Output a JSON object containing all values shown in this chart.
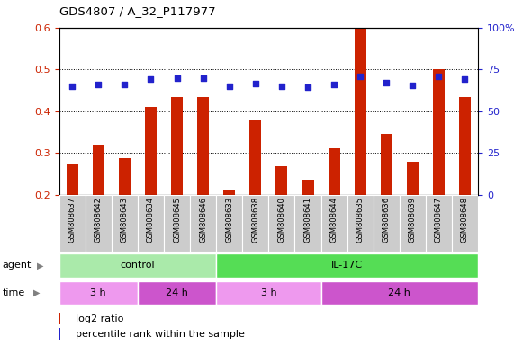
{
  "title": "GDS4807 / A_32_P117977",
  "samples": [
    "GSM808637",
    "GSM808642",
    "GSM808643",
    "GSM808634",
    "GSM808645",
    "GSM808646",
    "GSM808633",
    "GSM808638",
    "GSM808640",
    "GSM808641",
    "GSM808644",
    "GSM808635",
    "GSM808636",
    "GSM808639",
    "GSM808647",
    "GSM808648"
  ],
  "log2_ratio": [
    0.275,
    0.32,
    0.288,
    0.41,
    0.435,
    0.435,
    0.21,
    0.378,
    0.268,
    0.237,
    0.312,
    0.6,
    0.347,
    0.279,
    0.5,
    0.435
  ],
  "percentile_pct": [
    65,
    66,
    66,
    69,
    70,
    70,
    65,
    66.5,
    65,
    64.5,
    66,
    71,
    67,
    65.5,
    71,
    69
  ],
  "ylim_left": [
    0.2,
    0.6
  ],
  "ylim_right": [
    0,
    100
  ],
  "yticks_left": [
    0.2,
    0.3,
    0.4,
    0.5,
    0.6
  ],
  "yticks_right": [
    0,
    25,
    50,
    75,
    100
  ],
  "bar_color": "#cc2200",
  "dot_color": "#2222cc",
  "bar_width": 0.45,
  "agent_groups": [
    {
      "label": "control",
      "start": 0,
      "end": 6,
      "color": "#aaeaaa"
    },
    {
      "label": "IL-17C",
      "start": 6,
      "end": 16,
      "color": "#55dd55"
    }
  ],
  "time_groups": [
    {
      "label": "3 h",
      "start": 0,
      "end": 3,
      "color": "#ee99ee"
    },
    {
      "label": "24 h",
      "start": 3,
      "end": 6,
      "color": "#cc55cc"
    },
    {
      "label": "3 h",
      "start": 6,
      "end": 10,
      "color": "#ee99ee"
    },
    {
      "label": "24 h",
      "start": 10,
      "end": 16,
      "color": "#cc55cc"
    }
  ],
  "legend_items": [
    {
      "color": "#cc2200",
      "label": "log2 ratio"
    },
    {
      "color": "#2222cc",
      "label": "percentile rank within the sample"
    }
  ],
  "tick_label_color": "#cc2200",
  "right_tick_color": "#2222cc",
  "bg_color": "#ffffff",
  "xticklabel_bg": "#cccccc"
}
